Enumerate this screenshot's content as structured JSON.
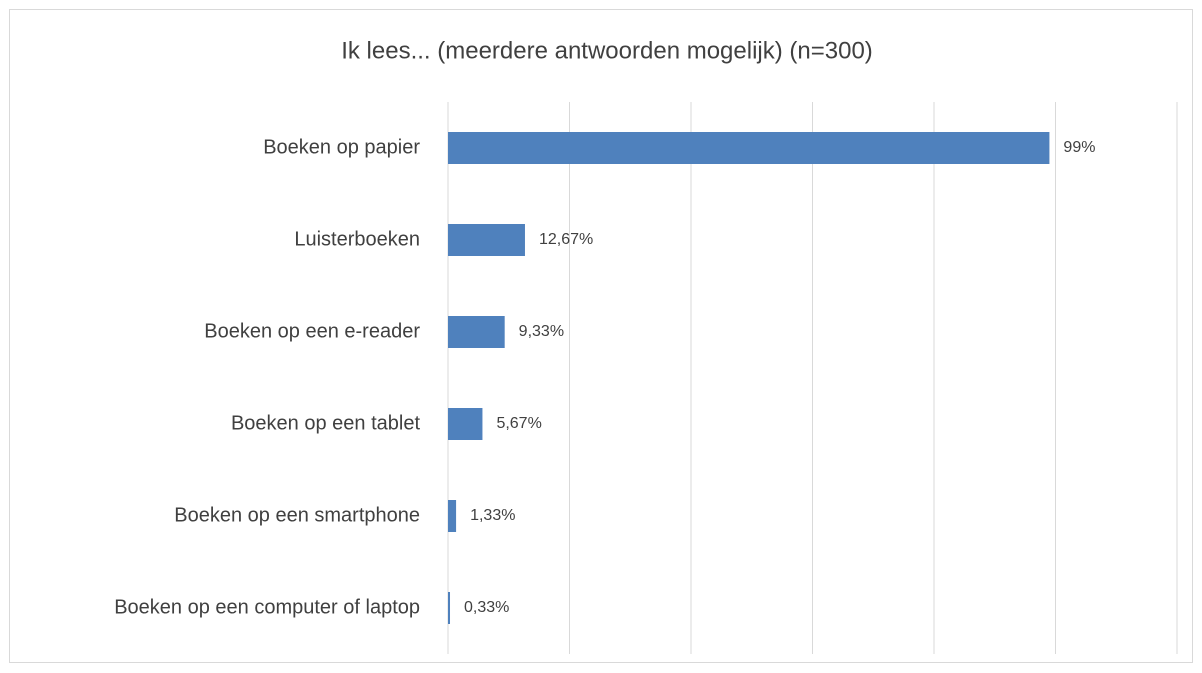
{
  "chart_data": {
    "type": "bar",
    "orientation": "horizontal",
    "title": "Ik lees... (meerdere antwoorden mogelijk) (n=300)",
    "categories": [
      "Boeken op papier",
      "Luisterboeken",
      "Boeken op een e-reader",
      "Boeken op een tablet",
      "Boeken op een smartphone",
      "Boeken op een computer of laptop"
    ],
    "values": [
      99,
      12.67,
      9.33,
      5.67,
      1.33,
      0.33
    ],
    "value_labels": [
      "99%",
      "12,67%",
      "9,33%",
      "5,67%",
      "1,33%",
      "0,33%"
    ],
    "color": "#4f81bd",
    "xlim": [
      0,
      120
    ],
    "xticks": [
      0,
      20,
      40,
      60,
      80,
      100,
      120
    ],
    "grid": true
  }
}
